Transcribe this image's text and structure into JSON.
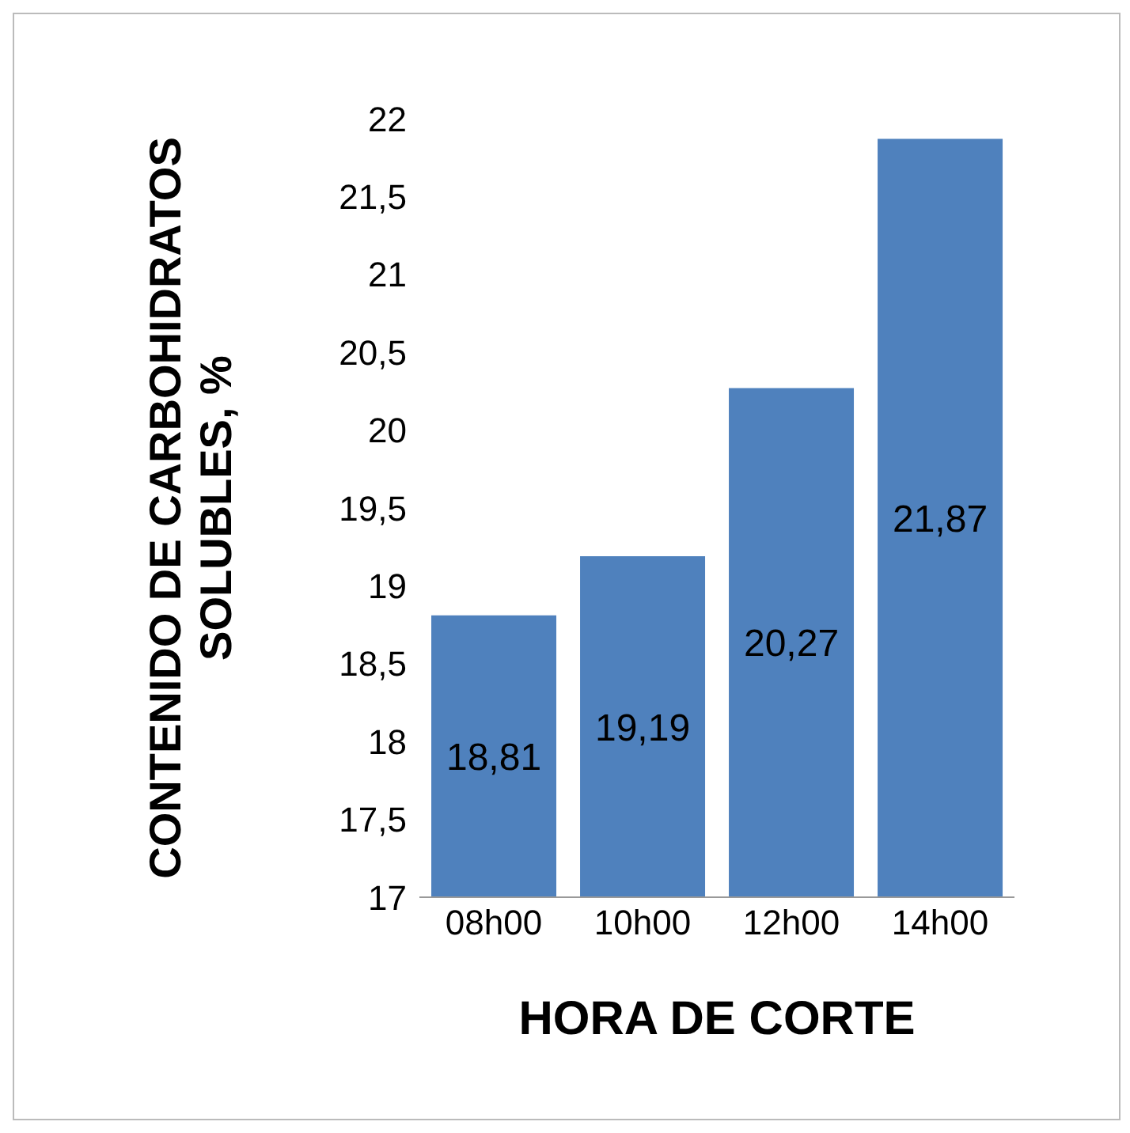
{
  "chart_data": {
    "type": "bar",
    "xlabel": "HORA DE CORTE",
    "ylabel": "CONTENIDO DE CARBOHIDRATOS SOLUBLES, %",
    "categories": [
      "08h00",
      "10h00",
      "12h00",
      "14h00"
    ],
    "values": [
      18.81,
      19.19,
      20.27,
      21.87
    ],
    "value_labels": [
      "18,81",
      "19,19",
      "20,27",
      "21,87"
    ],
    "color": "#4f81bd",
    "ylim": [
      17,
      22
    ],
    "yticks": [
      17,
      {
        "value": 17.5,
        "label": "17,5"
      },
      18,
      {
        "value": 18.5,
        "label": "18,5"
      },
      19,
      {
        "value": 19.5,
        "label": "19,5"
      },
      20,
      {
        "value": 20.5,
        "label": "20,5"
      },
      21,
      {
        "value": 21.5,
        "label": "21,5"
      },
      22
    ],
    "grid": false,
    "legend": false
  }
}
